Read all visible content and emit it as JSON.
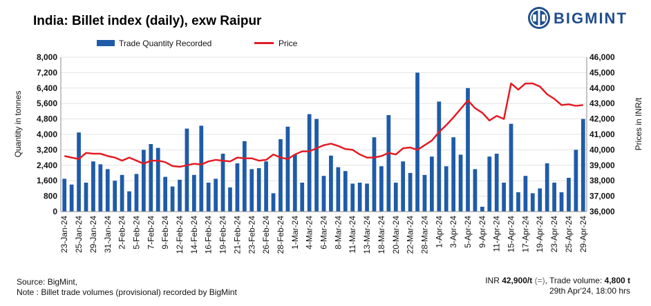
{
  "title": "India: Billet index (daily), exw Raipur",
  "brand": {
    "name": "BIGMINT",
    "color": "#1F4E8C",
    "icon": "bigmint-logo-icon"
  },
  "footer": {
    "source": "Source: BigMint,",
    "note": "Note : Billet trade volumes (provisional) recorded by BigMint",
    "price_prefix": "INR ",
    "price_value": "42,900/t",
    "price_change": "(=)",
    "volume_prefix": ", Trade volume: ",
    "volume_value": "4,800 t",
    "timestamp": "29th Apr'24, 18:00 hrs"
  },
  "chart_data": {
    "type": "bar+line",
    "legend": [
      "Trade Quantity Recorded",
      "Price"
    ],
    "legend_position": "top",
    "colors": {
      "bars": "#1F5BA8",
      "line": "#E31B23"
    },
    "ylabel_left": "Quantity in tonnes",
    "ylabel_right": "Prices in INR/t",
    "ylim_left": [
      0,
      8000
    ],
    "yticks_left": [
      "0",
      "800",
      "1,600",
      "2,400",
      "3,200",
      "4,000",
      "4,800",
      "5,600",
      "6,400",
      "7,200",
      "8,000"
    ],
    "ylim_right": [
      36000,
      46000
    ],
    "yticks_right": [
      "36,000",
      "37,000",
      "38,000",
      "39,000",
      "40,000",
      "41,000",
      "42,000",
      "43,000",
      "44,000",
      "45,000",
      "46,000"
    ],
    "x_tick_labels": [
      "23-Jan-24",
      "25-Jan-24",
      "29-Jan-24",
      "31-Jan-24",
      "2-Feb-24",
      "5-Feb-24",
      "7-Feb-24",
      "9-Feb-24",
      "12-Feb-24",
      "14-Feb-24",
      "16-Feb-24",
      "19-Feb-24",
      "21-Feb-24",
      "23-Feb-24",
      "26-Feb-24",
      "28-Feb-24",
      "1-Mar-24",
      "4-Mar-24",
      "6-Mar-24",
      "8-Mar-24",
      "11-Mar-24",
      "13-Mar-24",
      "18-Mar-24",
      "20-Mar-24",
      "22-Mar-24",
      "28-Mar-24",
      "1-Apr-24",
      "3-Apr-24",
      "5-Apr-24",
      "9-Apr-24",
      "11-Apr-24",
      "15-Apr-24",
      "17-Apr-24",
      "19-Apr-24",
      "23-Apr-24",
      "25-Apr-24",
      "29-Apr-24"
    ],
    "quantity": [
      1700,
      1400,
      4100,
      1500,
      2600,
      2450,
      2200,
      1600,
      1900,
      1050,
      1950,
      3200,
      3500,
      3300,
      1800,
      1300,
      1650,
      4300,
      1900,
      4450,
      1500,
      1700,
      3000,
      1250,
      2500,
      3650,
      2200,
      2250,
      2600,
      950,
      3750,
      4400,
      2950,
      1500,
      5050,
      4800,
      1850,
      2900,
      2300,
      2100,
      1450,
      1500,
      1450,
      3850,
      2350,
      5000,
      1500,
      2600,
      2000,
      7200,
      1900,
      2850,
      5700,
      2350,
      3850,
      2950,
      6400,
      2200,
      250,
      2850,
      3000,
      1500,
      4550,
      1000,
      1850,
      950,
      1200,
      2500,
      1500,
      1000,
      1750,
      3200,
      4800
    ],
    "price": [
      39600,
      39500,
      39400,
      39800,
      39750,
      39750,
      39600,
      39500,
      39300,
      39500,
      39300,
      39100,
      39300,
      39300,
      39200,
      38950,
      38900,
      39000,
      39100,
      39050,
      39250,
      39350,
      39300,
      39250,
      39500,
      39450,
      39450,
      39300,
      39350,
      39700,
      39500,
      39400,
      39700,
      39900,
      39900,
      40100,
      40300,
      40400,
      40250,
      40050,
      40000,
      39700,
      39500,
      39500,
      39600,
      39800,
      39700,
      40100,
      40150,
      40000,
      40300,
      40600,
      41150,
      41600,
      42100,
      42650,
      43200,
      42700,
      42400,
      41900,
      42200,
      42000,
      44300,
      43900,
      44300,
      44300,
      44100,
      43600,
      43300,
      42900,
      42950,
      42850,
      42900
    ]
  }
}
